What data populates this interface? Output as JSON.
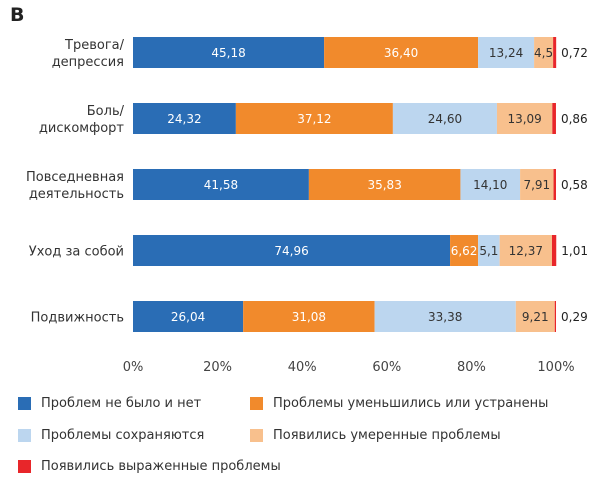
{
  "panel_label": "B",
  "colors": {
    "no_problems": "#2a6db5",
    "reduced": "#f18a2c",
    "persist": "#bcd6ef",
    "moderate": "#f8c08d",
    "severe": "#e8262a"
  },
  "chart_data": {
    "type": "bar",
    "orientation": "horizontal",
    "stacked": true,
    "categories": [
      [
        "Тревога/",
        "депрессия"
      ],
      [
        "Боль/",
        "дискомфорт"
      ],
      [
        "Повседневная",
        "деятельность"
      ],
      [
        "Уход за собой"
      ],
      [
        "Подвижность"
      ]
    ],
    "series": [
      {
        "name": "Проблем не было и нет",
        "key": "no_problems",
        "values": [
          45.18,
          24.32,
          41.58,
          74.96,
          26.04
        ],
        "labels": [
          "45,18",
          "24,32",
          "41,58",
          "74,96",
          "26,04"
        ]
      },
      {
        "name": "Проблемы уменьшились или устранены",
        "key": "reduced",
        "values": [
          36.4,
          37.12,
          35.83,
          6.62,
          31.08
        ],
        "labels": [
          "36,40",
          "37,12",
          "35,83",
          "6,62",
          "31,08"
        ]
      },
      {
        "name": "Проблемы сохраняются",
        "key": "persist",
        "values": [
          13.24,
          24.6,
          14.1,
          5.1,
          33.38
        ],
        "labels": [
          "13,24",
          "24,60",
          "14,10",
          "5,1",
          "33,38"
        ]
      },
      {
        "name": "Появились умеренные проблемы",
        "key": "moderate",
        "values": [
          4.5,
          13.09,
          7.91,
          12.37,
          9.21
        ],
        "labels": [
          "4,5",
          "13,09",
          "7,91",
          "12,37",
          "9,21"
        ]
      },
      {
        "name": "Появились выраженные проблемы",
        "key": "severe",
        "values": [
          0.72,
          0.86,
          0.58,
          1.01,
          0.29
        ],
        "labels": [
          "0,72",
          "0,86",
          "0,58",
          "1,01",
          "0,29"
        ]
      }
    ],
    "xlim": [
      0,
      100
    ],
    "xticks": [
      "0%",
      "20%",
      "40%",
      "60%",
      "80%",
      "100%"
    ],
    "grid": false,
    "legend_position": "bottom"
  }
}
